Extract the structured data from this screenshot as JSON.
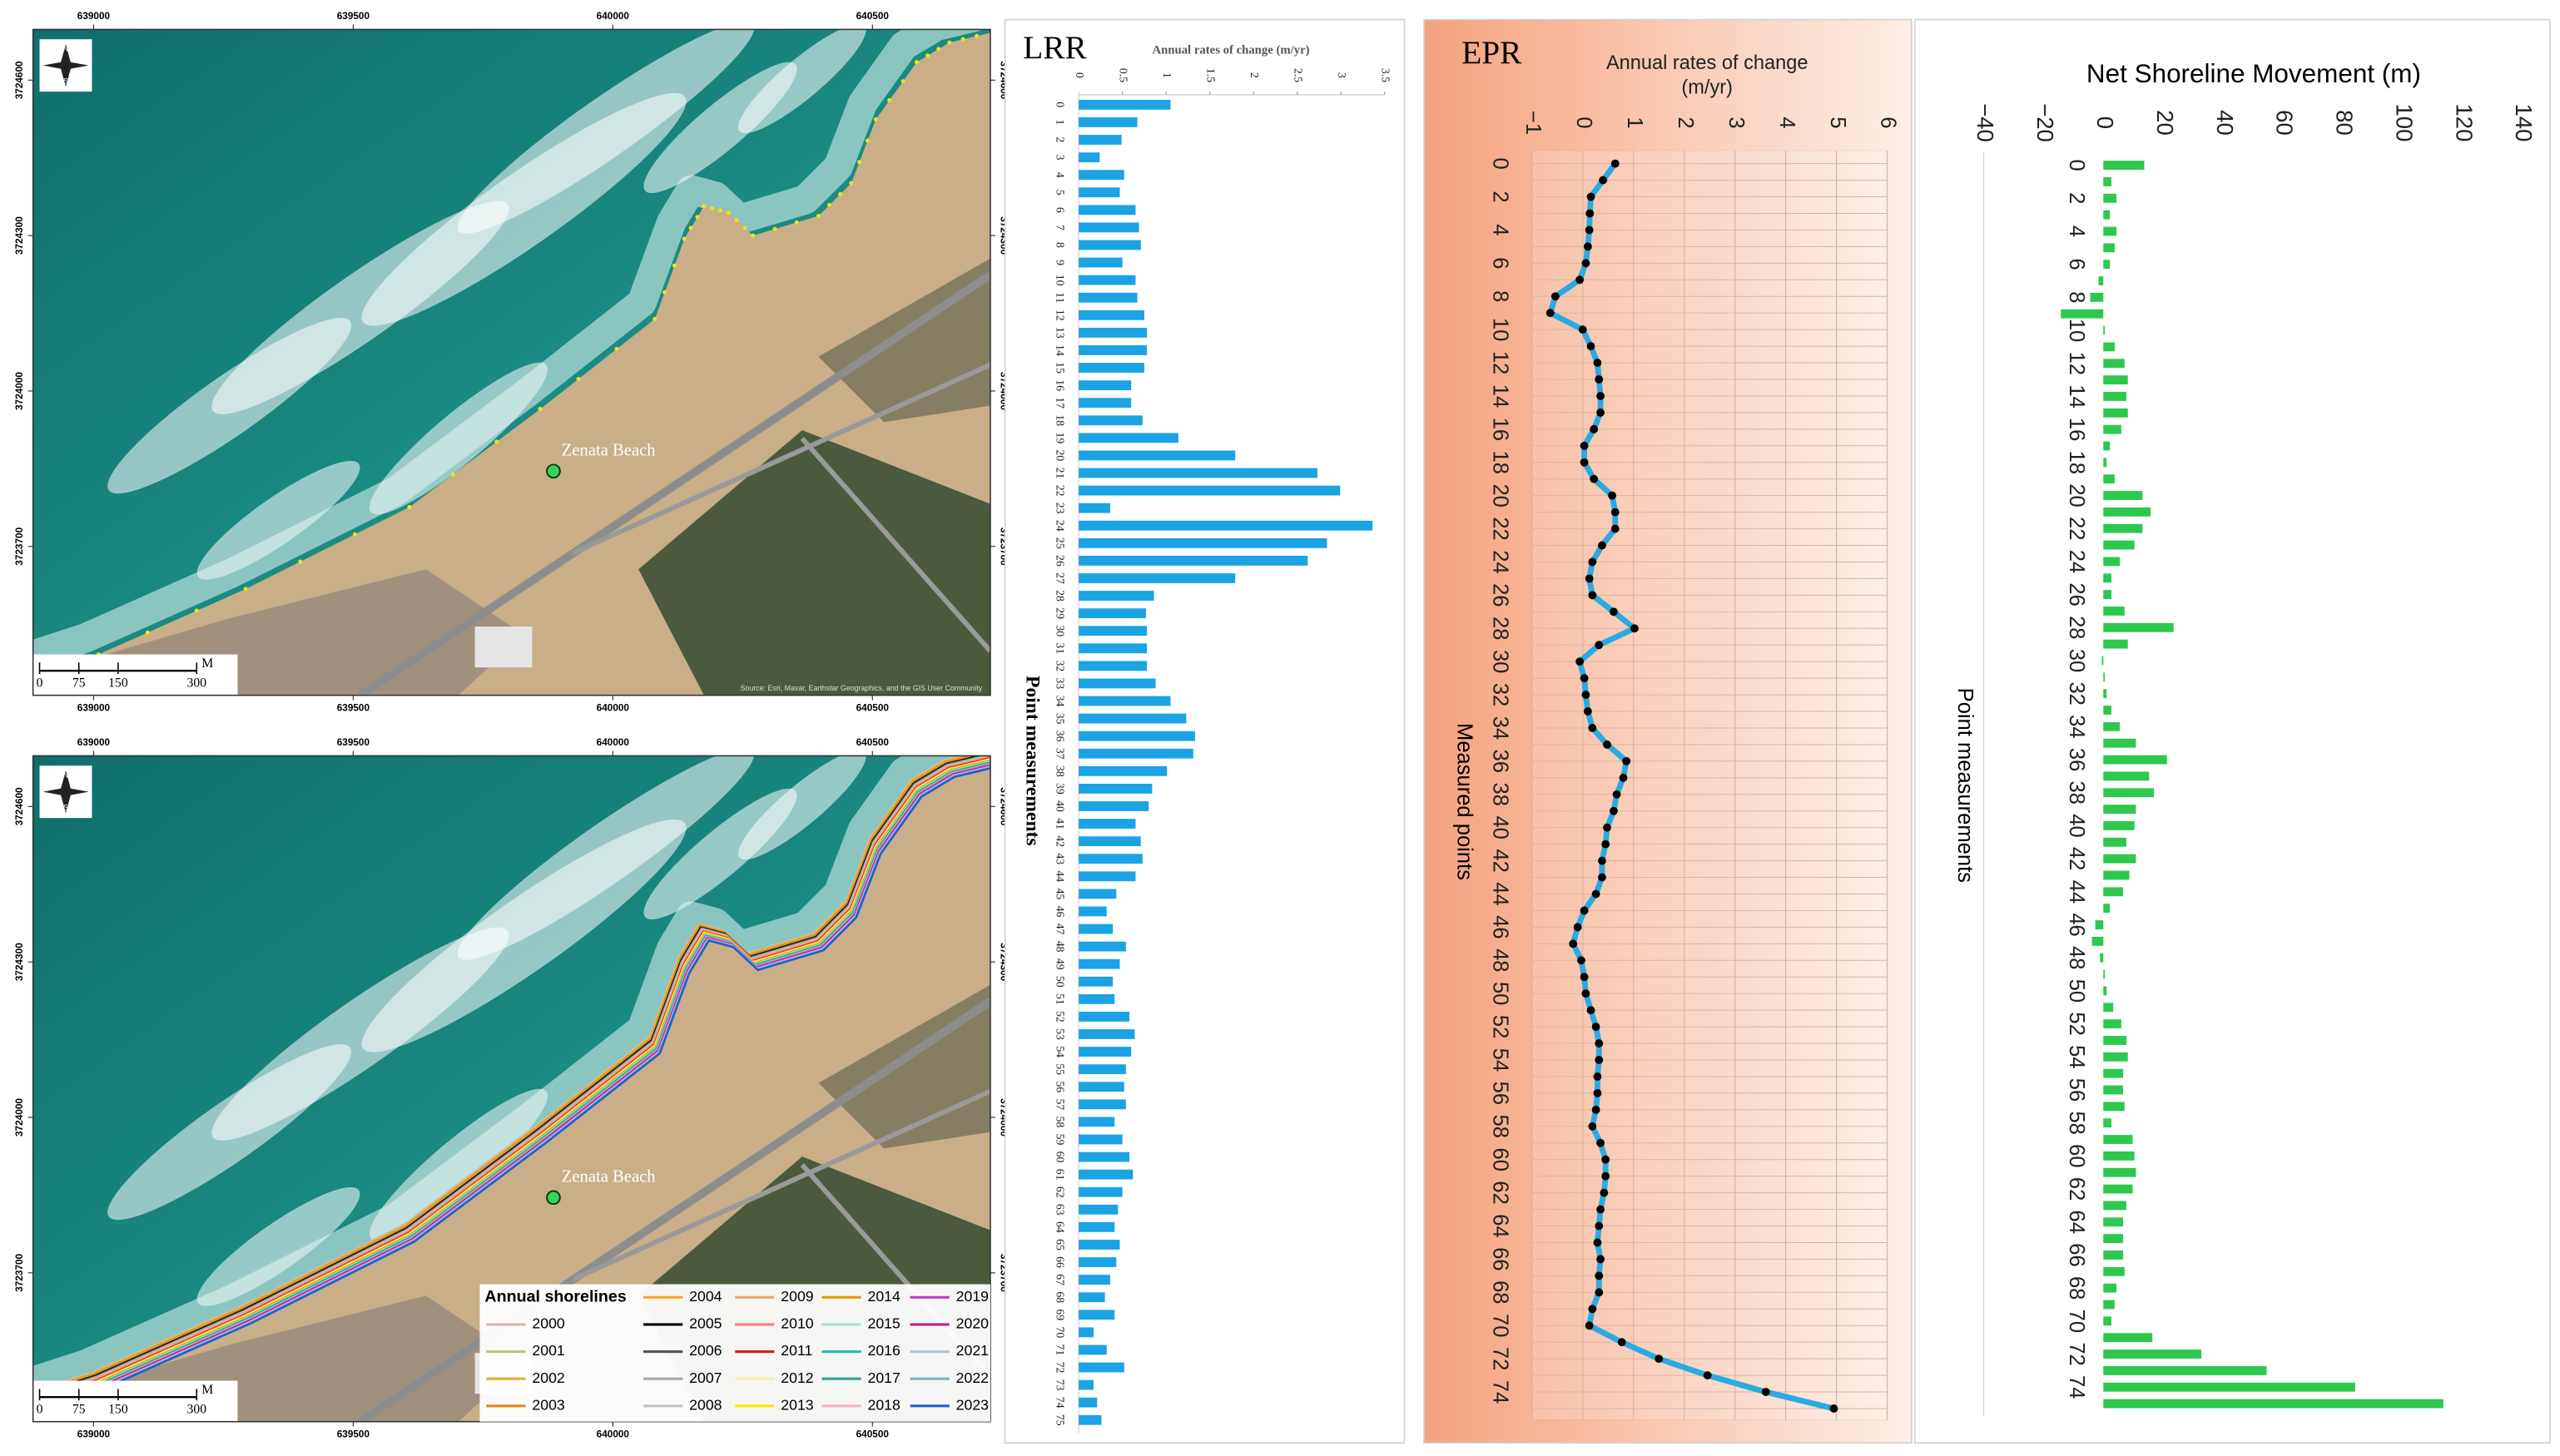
{
  "maps": {
    "easting_ticks": [
      639000,
      639500,
      640000,
      640500
    ],
    "northing_ticks": [
      3724600,
      3724300,
      3724000,
      3723700
    ],
    "place_label": "Zenata Beach",
    "compass": [
      "N",
      "E",
      "S",
      "W"
    ],
    "scale_ticks": [
      0,
      75,
      150,
      300
    ],
    "scale_unit": "M",
    "attribution": "Source: Esri, Maxar, Earthstar Geographics, and the GIS User Community",
    "legend_title": "Annual shorelines",
    "shorelines": [
      {
        "name": "2000",
        "color": "#d9b3b3"
      },
      {
        "name": "2001",
        "color": "#b7c77f"
      },
      {
        "name": "2002",
        "color": "#f0a830"
      },
      {
        "name": "2003",
        "color": "#e0851c"
      },
      {
        "name": "2004",
        "color": "#f5a623"
      },
      {
        "name": "2005",
        "color": "#000000"
      },
      {
        "name": "2006",
        "color": "#555555"
      },
      {
        "name": "2007",
        "color": "#a8a8a8"
      },
      {
        "name": "2008",
        "color": "#c4c4c4"
      },
      {
        "name": "2009",
        "color": "#e8a868"
      },
      {
        "name": "2010",
        "color": "#f08080"
      },
      {
        "name": "2011",
        "color": "#d91e1e"
      },
      {
        "name": "2012",
        "color": "#f3eeb0"
      },
      {
        "name": "2013",
        "color": "#ffe600"
      },
      {
        "name": "2014",
        "color": "#e09a00"
      },
      {
        "name": "2015",
        "color": "#a6e3d4"
      },
      {
        "name": "2016",
        "color": "#1fc0ae"
      },
      {
        "name": "2017",
        "color": "#2ea596"
      },
      {
        "name": "2018",
        "color": "#f4b3c2"
      },
      {
        "name": "2019",
        "color": "#c03cc0"
      },
      {
        "name": "2020",
        "color": "#c01f88"
      },
      {
        "name": "2021",
        "color": "#b3c3e3"
      },
      {
        "name": "2022",
        "color": "#7fb0c0"
      },
      {
        "name": "2023",
        "color": "#1f5fd0"
      }
    ]
  },
  "chart_data": [
    {
      "type": "bar",
      "orientation": "horizontal",
      "title": "LRR",
      "x_label": "Annual rates of change (m/yr)",
      "y_label": "Point measurements",
      "categories": [
        "0",
        "1",
        "2",
        "3",
        "4",
        "5",
        "6",
        "7",
        "8",
        "9",
        "10",
        "11",
        "12",
        "13",
        "14",
        "15",
        "16",
        "17",
        "18",
        "19",
        "20",
        "21",
        "22",
        "23",
        "24",
        "25",
        "26",
        "27",
        "28",
        "29",
        "30",
        "31",
        "32",
        "33",
        "34",
        "35",
        "36",
        "37",
        "38",
        "39",
        "40",
        "41",
        "42",
        "43",
        "44",
        "45",
        "46",
        "47",
        "48",
        "49",
        "50",
        "51",
        "52",
        "53",
        "54",
        "55",
        "56",
        "57",
        "58",
        "59",
        "60",
        "61",
        "62",
        "63",
        "64",
        "65",
        "66",
        "67",
        "68",
        "69",
        "70",
        "71",
        "72",
        "73",
        "74",
        "75"
      ],
      "values": [
        1.05,
        0.67,
        0.49,
        0.24,
        0.52,
        0.47,
        0.65,
        0.69,
        0.71,
        0.5,
        0.65,
        0.67,
        0.75,
        0.78,
        0.78,
        0.75,
        0.6,
        0.6,
        0.73,
        1.14,
        1.79,
        2.73,
        2.99,
        0.36,
        3.36,
        2.84,
        2.62,
        1.79,
        0.86,
        0.77,
        0.78,
        0.78,
        0.78,
        0.88,
        1.05,
        1.23,
        1.33,
        1.31,
        1.01,
        0.84,
        0.8,
        0.65,
        0.71,
        0.73,
        0.65,
        0.43,
        0.32,
        0.39,
        0.54,
        0.47,
        0.39,
        0.41,
        0.58,
        0.64,
        0.6,
        0.54,
        0.52,
        0.54,
        0.41,
        0.5,
        0.58,
        0.62,
        0.5,
        0.45,
        0.41,
        0.47,
        0.43,
        0.36,
        0.3,
        0.41,
        0.17,
        0.32,
        0.52,
        0.17,
        0.21,
        0.26
      ],
      "color": "#1ba3e3",
      "xlim": [
        0,
        3.5
      ],
      "xticks": [
        0,
        0.5,
        1,
        1.5,
        2,
        2.5,
        3,
        3.5
      ]
    },
    {
      "type": "line",
      "title": "EPR",
      "x_label": [
        "Annual rates of change",
        "(m/yr)"
      ],
      "y_label": "Measured points",
      "categories": [
        "0",
        null,
        "2",
        null,
        "4",
        null,
        "6",
        null,
        "8",
        null,
        "10",
        null,
        "12",
        null,
        "14",
        null,
        "16",
        null,
        "18",
        null,
        "20",
        null,
        "22",
        null,
        "24",
        null,
        "26",
        null,
        "28",
        null,
        "30",
        null,
        "32",
        null,
        "34",
        null,
        "36",
        null,
        "38",
        null,
        "40",
        null,
        "42",
        null,
        "44",
        null,
        "46",
        null,
        "48",
        null,
        "50",
        null,
        "52",
        null,
        "54",
        null,
        "56",
        null,
        "58",
        null,
        "60",
        null,
        "62",
        null,
        "64",
        null,
        "66",
        null,
        "68",
        null,
        "70",
        null,
        "72",
        null,
        "74",
        null
      ],
      "values": [
        0.64,
        0.4,
        0.16,
        0.14,
        0.13,
        0.1,
        0.06,
        -0.06,
        -0.54,
        -0.64,
        0,
        0.16,
        0.29,
        0.32,
        0.35,
        0.35,
        0.22,
        0.03,
        0.03,
        0.22,
        0.58,
        0.64,
        0.64,
        0.38,
        0.19,
        0.13,
        0.19,
        0.61,
        1.02,
        0.32,
        -0.06,
        0.03,
        0.06,
        0.1,
        0.19,
        0.48,
        0.86,
        0.8,
        0.67,
        0.61,
        0.48,
        0.45,
        0.38,
        0.38,
        0.26,
        0.03,
        -0.1,
        -0.19,
        -0.03,
        0.03,
        0.06,
        0.16,
        0.26,
        0.32,
        0.32,
        0.29,
        0.29,
        0.26,
        0.19,
        0.35,
        0.45,
        0.45,
        0.42,
        0.35,
        0.32,
        0.29,
        0.35,
        0.32,
        0.32,
        0.19,
        0.13,
        0.77,
        1.5,
        2.46,
        3.61,
        4.95
      ],
      "color": "#29abe2",
      "marker_color": "#000000",
      "xlim": [
        -1,
        6
      ],
      "xticks": [
        {
          "value": -1,
          "label": "−1"
        },
        0,
        1,
        2,
        3,
        4,
        5,
        6
      ],
      "grid": true
    },
    {
      "type": "bar",
      "orientation": "horizontal",
      "title": "Net Shoreline Movement (m)",
      "y_label": "Point measurements",
      "categories": [
        "0",
        null,
        "2",
        null,
        "4",
        null,
        "6",
        null,
        "8",
        null,
        "10",
        null,
        "12",
        null,
        "14",
        null,
        "16",
        null,
        "18",
        null,
        "20",
        null,
        "22",
        null,
        "24",
        null,
        "26",
        null,
        "28",
        null,
        "30",
        null,
        "32",
        null,
        "34",
        null,
        "36",
        null,
        "38",
        null,
        "40",
        null,
        "42",
        null,
        "44",
        null,
        "46",
        null,
        "48",
        null,
        "50",
        null,
        "52",
        null,
        "54",
        null,
        "56",
        null,
        "58",
        null,
        "60",
        null,
        "62",
        null,
        "64",
        null,
        "66",
        null,
        "68",
        null,
        "70",
        null,
        "72",
        null,
        "74",
        null
      ],
      "values": [
        13.7,
        2.7,
        4.4,
        2.2,
        4.4,
        3.8,
        2.2,
        -1.6,
        -4.4,
        -14.2,
        0.5,
        3.8,
        7.1,
        8.2,
        7.7,
        8.2,
        6,
        2.2,
        1.1,
        3.8,
        13.1,
        15.8,
        13.1,
        10.4,
        5.5,
        2.7,
        2.7,
        7.1,
        23.5,
        8.2,
        -0.5,
        0.5,
        1.1,
        2.7,
        5.5,
        10.9,
        21.3,
        15.3,
        16.9,
        10.9,
        10.4,
        7.7,
        10.9,
        8.7,
        6.6,
        2.2,
        -2.7,
        -3.8,
        -1.1,
        0.5,
        1.1,
        3.3,
        6,
        7.7,
        8.2,
        6.6,
        6.6,
        7.1,
        2.7,
        9.8,
        10.4,
        10.9,
        9.8,
        7.7,
        6.6,
        6.6,
        6.6,
        7.1,
        4.4,
        3.8,
        2.7,
        16.4,
        32.8,
        54.6,
        84.2,
        113.7
      ],
      "color": "#2dc84d",
      "xlim": [
        -40,
        140
      ],
      "xticks": [
        {
          "value": -40,
          "label": "−40"
        },
        {
          "value": -20,
          "label": "−20"
        },
        0,
        20,
        40,
        60,
        80,
        100,
        120,
        140
      ]
    }
  ]
}
